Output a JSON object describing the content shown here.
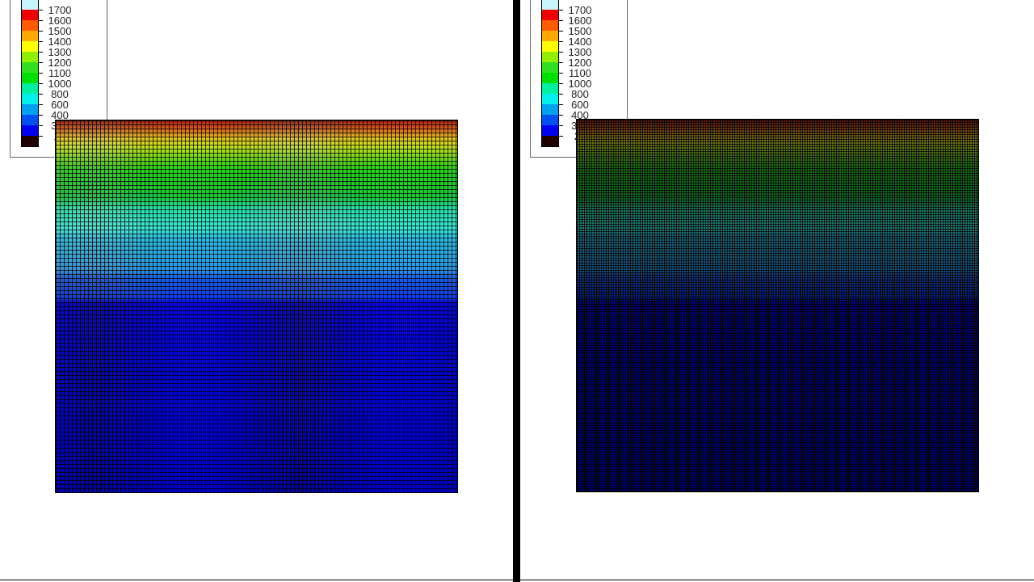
{
  "legend": {
    "colors": [
      "#c8f4fc",
      "#f00000",
      "#ff5a00",
      "#ffaa00",
      "#ffff00",
      "#90f000",
      "#30e020",
      "#00e000",
      "#00f0a0",
      "#00f0f0",
      "#00a0f0",
      "#0050f0",
      "#0000f0",
      "#200000"
    ],
    "labels": [
      "1700",
      "1600",
      "1500",
      "1400",
      "1300",
      "1200",
      "1100",
      "1000",
      "800",
      "600",
      "400",
      "300",
      "25"
    ]
  }
}
